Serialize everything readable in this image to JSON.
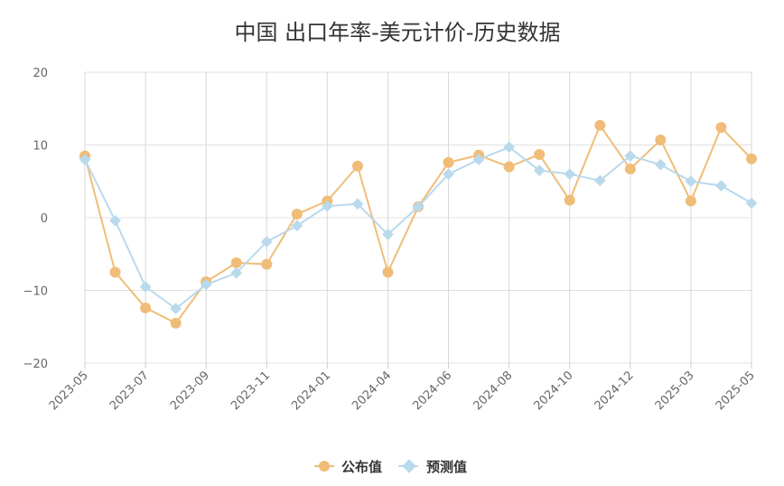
{
  "chart_data": {
    "type": "line",
    "title": "中国 出口年率-美元计价-历史数据",
    "x": [
      "2023-05",
      "2023-06",
      "2023-07",
      "2023-08",
      "2023-09",
      "2023-10",
      "2023-11",
      "2023-12",
      "2024-01",
      "2024-03",
      "2024-04",
      "2024-05",
      "2024-06",
      "2024-07",
      "2024-08",
      "2024-09",
      "2024-10",
      "2024-11",
      "2024-12",
      "2025-01",
      "2025-03",
      "2025-04",
      "2025-05"
    ],
    "x_tick_labels": [
      "2023-05",
      "2023-07",
      "2023-09",
      "2023-11",
      "2024-01",
      "2024-04",
      "2024-06",
      "2024-08",
      "2024-10",
      "2024-12",
      "2025-03",
      "2025-05"
    ],
    "y_ticks": [
      "20",
      "10",
      "0",
      "−10",
      "−20"
    ],
    "ylim": [
      -20,
      20
    ],
    "grid": true,
    "legend_position": "bottom-center",
    "series": [
      {
        "name": "公布值",
        "color": "#f0bd78",
        "marker": "circle",
        "values": [
          8.5,
          -7.5,
          -12.4,
          -14.5,
          -8.8,
          -6.2,
          -6.4,
          0.5,
          2.3,
          7.1,
          -7.5,
          1.5,
          7.6,
          8.6,
          7.0,
          8.7,
          2.4,
          12.7,
          6.7,
          10.7,
          2.3,
          12.4,
          8.1
        ]
      },
      {
        "name": "预测值",
        "color": "#b9d9ec",
        "marker": "diamond",
        "values": [
          8.0,
          -0.4,
          -9.5,
          -12.5,
          -9.2,
          -7.6,
          -3.3,
          -1.1,
          1.6,
          1.9,
          -2.3,
          1.5,
          6.0,
          8.0,
          9.7,
          6.5,
          6.0,
          5.1,
          8.5,
          7.3,
          5.0,
          4.4,
          2.0
        ]
      }
    ]
  }
}
